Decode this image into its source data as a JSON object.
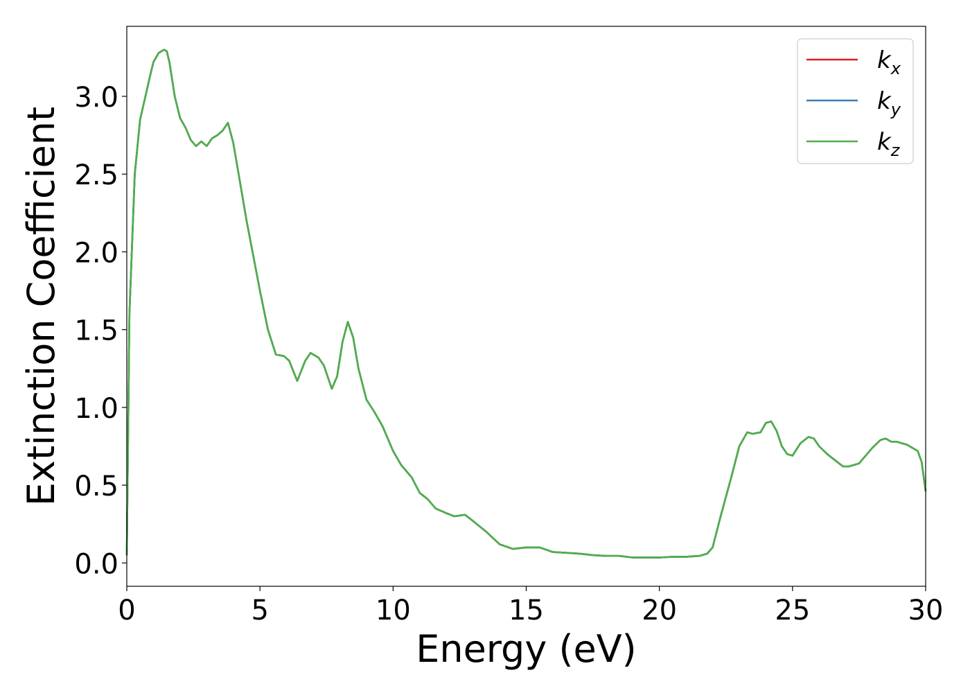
{
  "chart_data": {
    "type": "line",
    "title": "",
    "xlabel": "Energy (eV)",
    "ylabel": "Extinction Coefficient",
    "xlim": [
      0,
      30
    ],
    "ylim": [
      -0.15,
      3.45
    ],
    "xticks": [
      0,
      5,
      10,
      15,
      20,
      25,
      30
    ],
    "xtick_labels": [
      "0",
      "5",
      "10",
      "15",
      "20",
      "25",
      "30"
    ],
    "yticks": [
      0.0,
      0.5,
      1.0,
      1.5,
      2.0,
      2.5,
      3.0
    ],
    "ytick_labels": [
      "0.0",
      "0.5",
      "1.0",
      "1.5",
      "2.0",
      "2.5",
      "3.0"
    ],
    "grid": false,
    "legend_position": "upper right",
    "series": [
      {
        "name": "k_x",
        "label_base": "k",
        "label_sub": "x",
        "color": "#e41a1c"
      },
      {
        "name": "k_y",
        "label_base": "k",
        "label_sub": "y",
        "color": "#377eb8"
      },
      {
        "name": "k_z",
        "label_base": "k",
        "label_sub": "z",
        "color": "#4daf4a"
      }
    ],
    "x": [
      0,
      0.1,
      0.3,
      0.5,
      0.7,
      0.9,
      1.0,
      1.2,
      1.4,
      1.5,
      1.6,
      1.8,
      2.0,
      2.2,
      2.4,
      2.6,
      2.8,
      3.0,
      3.2,
      3.4,
      3.6,
      3.8,
      4.0,
      4.2,
      4.5,
      5.0,
      5.3,
      5.6,
      5.9,
      6.1,
      6.4,
      6.7,
      6.9,
      7.2,
      7.4,
      7.7,
      7.9,
      8.1,
      8.3,
      8.5,
      8.7,
      9.0,
      9.3,
      9.6,
      10.0,
      10.3,
      10.7,
      11.0,
      11.3,
      11.6,
      12.0,
      12.3,
      12.7,
      13.0,
      13.5,
      14.0,
      14.5,
      15.0,
      15.5,
      16.0,
      16.5,
      17.0,
      17.5,
      18.0,
      18.5,
      19.0,
      19.5,
      20.0,
      20.5,
      21.0,
      21.5,
      21.8,
      22.0,
      22.3,
      22.7,
      23.0,
      23.3,
      23.5,
      23.8,
      24.0,
      24.2,
      24.4,
      24.6,
      24.8,
      25.0,
      25.3,
      25.6,
      25.8,
      26.0,
      26.3,
      26.6,
      26.9,
      27.1,
      27.5,
      27.8,
      28.0,
      28.3,
      28.5,
      28.7,
      28.9,
      29.1,
      29.3,
      29.5,
      29.7,
      29.85,
      30.0
    ],
    "values": [
      0.05,
      1.6,
      2.5,
      2.85,
      3.0,
      3.15,
      3.22,
      3.28,
      3.3,
      3.29,
      3.22,
      3.0,
      2.86,
      2.8,
      2.72,
      2.68,
      2.71,
      2.68,
      2.73,
      2.75,
      2.78,
      2.83,
      2.7,
      2.5,
      2.2,
      1.75,
      1.5,
      1.34,
      1.33,
      1.3,
      1.17,
      1.3,
      1.35,
      1.32,
      1.27,
      1.12,
      1.2,
      1.42,
      1.55,
      1.45,
      1.25,
      1.05,
      0.97,
      0.88,
      0.72,
      0.63,
      0.55,
      0.45,
      0.41,
      0.35,
      0.32,
      0.3,
      0.31,
      0.27,
      0.2,
      0.12,
      0.09,
      0.1,
      0.1,
      0.07,
      0.065,
      0.06,
      0.05,
      0.045,
      0.045,
      0.035,
      0.035,
      0.035,
      0.04,
      0.04,
      0.045,
      0.06,
      0.1,
      0.3,
      0.55,
      0.75,
      0.84,
      0.83,
      0.84,
      0.9,
      0.91,
      0.85,
      0.75,
      0.7,
      0.69,
      0.77,
      0.81,
      0.8,
      0.75,
      0.7,
      0.66,
      0.62,
      0.62,
      0.64,
      0.7,
      0.74,
      0.79,
      0.8,
      0.78,
      0.78,
      0.77,
      0.76,
      0.74,
      0.72,
      0.65,
      0.46
    ]
  }
}
